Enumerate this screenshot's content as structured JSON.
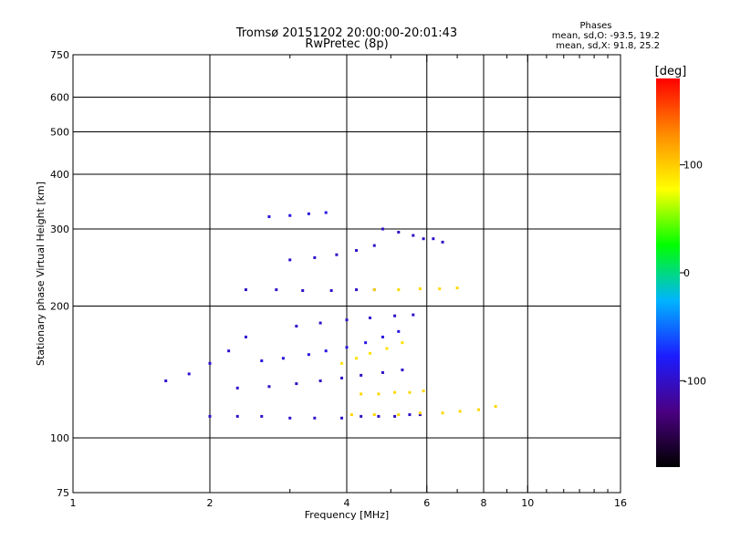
{
  "chart_data": {
    "type": "scatter",
    "title": "Tromsø 20151202 20:00:00-20:01:43",
    "subtitle": "RwPretec (8p)",
    "phase_box": {
      "heading": "Phases",
      "line_o": "mean, sd,O: -93.5, 19.2",
      "line_x": "mean, sd,X:  91.8, 25.2"
    },
    "xlabel": "Frequency [MHz]",
    "ylabel": "Stationary phase Virtual Height [km]",
    "x_scale": "log",
    "y_scale": "log",
    "xlim": [
      1,
      16
    ],
    "ylim": [
      75,
      750
    ],
    "x_ticks": [
      1,
      2,
      4,
      6,
      8,
      10,
      16
    ],
    "x_tick_labels": [
      "1",
      "2",
      "4",
      "6",
      "8",
      "10",
      "16"
    ],
    "x_minor_ticks": [
      3,
      5,
      7,
      9,
      11,
      12,
      13,
      14,
      15
    ],
    "y_ticks": [
      75,
      100,
      200,
      300,
      400,
      500,
      600,
      750
    ],
    "y_tick_labels": [
      "75",
      "100",
      "200",
      "300",
      "400",
      "500",
      "600",
      "750"
    ],
    "grid": true,
    "grid_x": [
      2,
      4,
      6,
      8,
      10
    ],
    "grid_y": [
      100,
      200,
      300,
      400,
      500,
      600
    ],
    "colorbar": {
      "label": "[deg]",
      "range": [
        -180,
        180
      ],
      "ticks": [
        100,
        0,
        -100
      ],
      "tick_labels": [
        "100",
        "0",
        "-100"
      ],
      "colors": [
        "#000000",
        "#4b0082",
        "#1c1cff",
        "#00b4ff",
        "#00ff00",
        "#ffff00",
        "#ff8c00",
        "#ff0000"
      ]
    },
    "traces": [
      {
        "name": "",
        "phase": -100,
        "x": [
          2.0,
          2.3,
          2.6,
          3.0,
          3.4,
          3.9,
          4.3,
          4.7,
          5.1,
          5.5,
          5.8
        ],
        "y": [
          112,
          112,
          112,
          111,
          111,
          111,
          112,
          112,
          112,
          113,
          113
        ]
      },
      {
        "name": "",
        "phase": 95,
        "x": [
          4.1,
          4.6,
          5.2,
          5.8,
          6.5,
          7.1,
          7.8,
          8.5
        ],
        "y": [
          113,
          113,
          113,
          114,
          114,
          115,
          116,
          118
        ]
      },
      {
        "name": "",
        "phase": -100,
        "x": [
          2.4,
          2.8,
          3.2,
          3.7,
          4.2,
          4.6
        ],
        "y": [
          218,
          218,
          217,
          217,
          218,
          218
        ]
      },
      {
        "name": "",
        "phase": 95,
        "x": [
          4.6,
          5.2,
          5.8,
          6.4,
          7.0
        ],
        "y": [
          218,
          218,
          219,
          219,
          220
        ]
      },
      {
        "name": "",
        "phase": -100,
        "x": [
          2.3,
          2.7,
          3.1,
          3.5,
          3.9,
          4.3,
          4.8,
          5.3
        ],
        "y": [
          130,
          131,
          133,
          135,
          137,
          139,
          141,
          143
        ]
      },
      {
        "name": "",
        "phase": 95,
        "x": [
          4.3,
          4.7,
          5.1,
          5.5,
          5.9
        ],
        "y": [
          126,
          126,
          127,
          127,
          128
        ]
      },
      {
        "name": "",
        "phase": -90,
        "x": [
          2.6,
          2.9,
          3.3,
          3.6,
          4.0,
          4.4,
          4.8,
          5.2
        ],
        "y": [
          150,
          152,
          155,
          158,
          161,
          165,
          170,
          175
        ]
      },
      {
        "name": "",
        "phase": -100,
        "x": [
          3.0,
          3.4,
          3.8,
          4.2,
          4.6
        ],
        "y": [
          255,
          258,
          262,
          268,
          275
        ]
      },
      {
        "name": "",
        "phase": -100,
        "x": [
          3.1,
          3.5,
          4.0,
          4.5,
          5.1,
          5.6
        ],
        "y": [
          180,
          183,
          186,
          188,
          190,
          191
        ]
      },
      {
        "name": "",
        "phase": -90,
        "x": [
          2.7,
          3.0,
          3.3,
          3.6
        ],
        "y": [
          320,
          322,
          325,
          327
        ]
      },
      {
        "name": "",
        "phase": -95,
        "x": [
          1.6,
          1.8,
          2.0,
          2.2,
          2.4
        ],
        "y": [
          135,
          140,
          148,
          158,
          170
        ]
      },
      {
        "name": "",
        "phase": 90,
        "x": [
          3.9,
          4.2,
          4.5,
          4.9,
          5.3
        ],
        "y": [
          148,
          152,
          156,
          160,
          165
        ]
      },
      {
        "name": "",
        "phase": -100,
        "x": [
          4.8,
          5.2,
          5.6,
          5.9
        ],
        "y": [
          300,
          295,
          290,
          285
        ]
      },
      {
        "name": "",
        "phase": -100,
        "x": [
          6.2,
          6.5
        ],
        "y": [
          285,
          280
        ]
      }
    ]
  }
}
